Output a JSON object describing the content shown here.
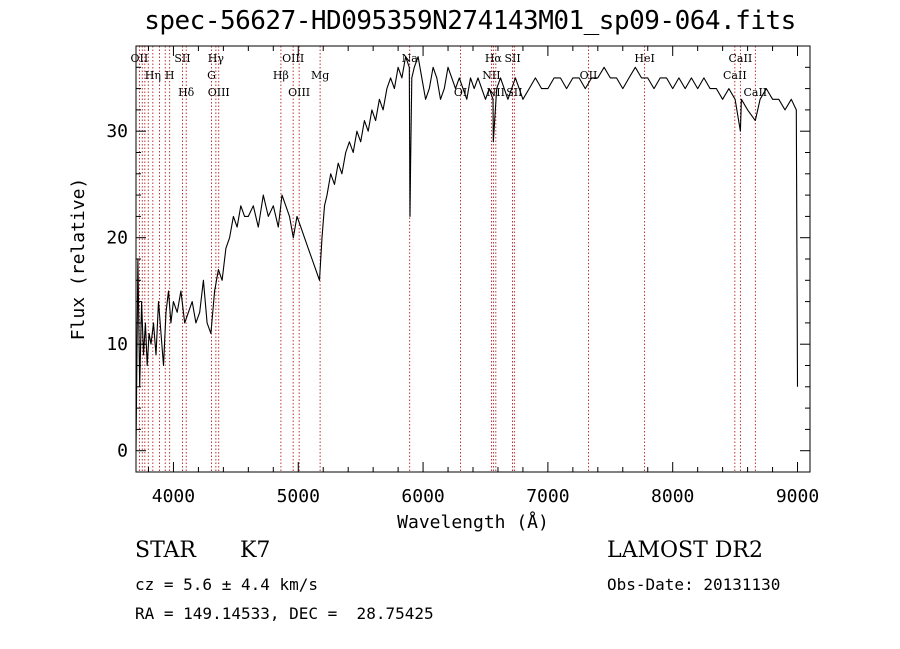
{
  "chart_data": {
    "type": "line",
    "title": "spec-56627-HD095359N274143M01_sp09-064.fits",
    "xlabel": "Wavelength (Å)",
    "ylabel": "Flux (relative)",
    "xlim": [
      3700,
      9100
    ],
    "ylim": [
      -2,
      38
    ],
    "xticks": [
      4000,
      5000,
      6000,
      7000,
      8000,
      9000
    ],
    "yticks": [
      0,
      10,
      20,
      30
    ],
    "grid": false,
    "series": [
      {
        "x": [
          3700,
          3715,
          3730,
          3745,
          3760,
          3775,
          3790,
          3805,
          3820,
          3840,
          3860,
          3880,
          3900,
          3920,
          3940,
          3960,
          3980,
          4000,
          4030,
          4060,
          4090,
          4120,
          4150,
          4180,
          4210,
          4240,
          4270,
          4300,
          4330,
          4360,
          4390,
          4420,
          4450,
          4480,
          4510,
          4540,
          4570,
          4600,
          4640,
          4680,
          4720,
          4760,
          4800,
          4840,
          4870,
          4900,
          4930,
          4960,
          4990,
          5020,
          5050,
          5080,
          5110,
          5140,
          5170,
          5190,
          5210,
          5230,
          5260,
          5290,
          5320,
          5350,
          5380,
          5410,
          5440,
          5470,
          5500,
          5530,
          5560,
          5590,
          5620,
          5650,
          5680,
          5710,
          5740,
          5770,
          5800,
          5830,
          5860,
          5890,
          5895,
          5900,
          5910,
          5930,
          5960,
          5990,
          6020,
          6050,
          6080,
          6110,
          6140,
          6170,
          6200,
          6230,
          6260,
          6290,
          6320,
          6350,
          6380,
          6410,
          6440,
          6470,
          6500,
          6530,
          6560,
          6563,
          6590,
          6620,
          6650,
          6680,
          6710,
          6740,
          6770,
          6800,
          6850,
          6900,
          6950,
          7000,
          7050,
          7100,
          7150,
          7200,
          7250,
          7300,
          7350,
          7400,
          7450,
          7500,
          7550,
          7600,
          7650,
          7700,
          7750,
          7800,
          7850,
          7900,
          7950,
          8000,
          8050,
          8100,
          8150,
          8200,
          8250,
          8300,
          8350,
          8400,
          8450,
          8500,
          8542,
          8550,
          8600,
          8662,
          8700,
          8750,
          8800,
          8850,
          8900,
          8950,
          8990,
          9000
        ],
        "y": [
          0,
          18,
          6,
          14,
          9,
          12,
          8,
          11,
          10,
          12,
          9,
          14,
          11,
          8,
          13,
          15,
          12,
          14,
          13,
          15,
          12,
          13,
          14,
          12,
          13,
          16,
          12,
          11,
          15,
          17,
          16,
          19,
          20,
          22,
          21,
          23,
          22,
          22,
          23,
          21,
          24,
          22,
          23,
          21,
          24,
          23,
          22,
          20,
          22,
          21,
          20,
          19,
          18,
          17,
          16,
          20,
          23,
          24,
          26,
          25,
          27,
          26,
          28,
          29,
          28,
          30,
          29,
          31,
          30,
          32,
          31,
          33,
          32,
          34,
          35,
          34,
          36,
          35,
          37,
          36,
          22,
          27,
          35,
          36,
          37,
          35,
          33,
          34,
          36,
          35,
          33,
          34,
          36,
          35,
          34,
          35,
          34,
          33,
          35,
          34,
          35,
          34,
          33,
          34,
          33,
          29,
          34,
          35,
          34,
          33,
          34,
          35,
          34,
          33,
          34,
          35,
          34,
          34,
          35,
          35,
          34,
          35,
          35,
          34,
          35,
          35,
          36,
          35,
          35,
          34,
          35,
          36,
          35,
          35,
          34,
          35,
          35,
          34,
          35,
          34,
          35,
          34,
          35,
          34,
          34,
          33,
          34,
          33,
          30,
          33,
          32,
          31,
          33,
          34,
          33,
          33,
          32,
          33,
          32,
          6
        ]
      }
    ],
    "line_ids": [
      {
        "label": "OII",
        "x": 3727,
        "pos": "top"
      },
      {
        "label": "Hη",
        "x": 3835,
        "pos": "mid"
      },
      {
        "label": "H",
        "x": 3970,
        "pos": "mid"
      },
      {
        "label": "SII",
        "x": 4072,
        "pos": "top"
      },
      {
        "label": "Hδ",
        "x": 4102,
        "pos": "low"
      },
      {
        "label": "Hγ",
        "x": 4340,
        "pos": "top"
      },
      {
        "label": "G",
        "x": 4305,
        "pos": "mid"
      },
      {
        "label": "OIII",
        "x": 4363,
        "pos": "low"
      },
      {
        "label": "OIII",
        "x": 4959,
        "pos": "top"
      },
      {
        "label": "Hβ",
        "x": 4861,
        "pos": "mid"
      },
      {
        "label": "OIII",
        "x": 5007,
        "pos": "low"
      },
      {
        "label": "Mg",
        "x": 5175,
        "pos": "mid"
      },
      {
        "label": "Na",
        "x": 5893,
        "pos": "top"
      },
      {
        "label": "OI",
        "x": 6300,
        "pos": "low"
      },
      {
        "label": "Hα",
        "x": 6563,
        "pos": "top"
      },
      {
        "label": "NII",
        "x": 6548,
        "pos": "mid"
      },
      {
        "label": "NII",
        "x": 6583,
        "pos": "low"
      },
      {
        "label": "SII",
        "x": 6717,
        "pos": "top"
      },
      {
        "label": "SII",
        "x": 6731,
        "pos": "low"
      },
      {
        "label": "OII",
        "x": 7325,
        "pos": "mid"
      },
      {
        "label": "HeI",
        "x": 7775,
        "pos": "top"
      },
      {
        "label": "CaII",
        "x": 8542,
        "pos": "top"
      },
      {
        "label": "CaII",
        "x": 8498,
        "pos": "mid"
      },
      {
        "label": "CaII",
        "x": 8662,
        "pos": "low"
      }
    ],
    "marker_lines": [
      3727,
      3750,
      3771,
      3798,
      3835,
      3889,
      3934,
      3970,
      4072,
      4102,
      4305,
      4340,
      4363,
      4861,
      4959,
      5007,
      5175,
      5893,
      6300,
      6548,
      6563,
      6583,
      6717,
      6731,
      7325,
      7775,
      8498,
      8542,
      8662
    ],
    "colors": {
      "spectrum": "#000000",
      "markers": "#b00000"
    }
  },
  "info": {
    "object_class": "STAR",
    "subclass": "K7",
    "survey": "LAMOST DR2",
    "cz": "cz = 5.6 ± 4.4 km/s",
    "obs_date": "Obs-Date: 20131130",
    "radec": "RA = 149.14533, DEC =  28.75425"
  }
}
